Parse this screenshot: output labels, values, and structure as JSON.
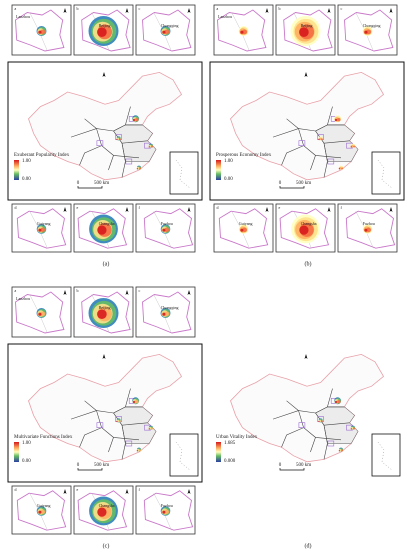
{
  "panels": [
    {
      "caption": "(a)",
      "legend": {
        "title": "Exuberant Popularity Index",
        "max": "1.00",
        "min": "0.00"
      },
      "scale": {
        "zero": "0",
        "distance": "500 km"
      },
      "insets": [
        {
          "letter": "a",
          "city": "Lanzhou"
        },
        {
          "letter": "b",
          "city": "Beijing"
        },
        {
          "letter": "c",
          "city": "Chongqing"
        },
        {
          "letter": "d",
          "city": "Guiyang"
        },
        {
          "letter": "e",
          "city": "Changsha"
        },
        {
          "letter": "f",
          "city": "Fuzhou"
        }
      ]
    },
    {
      "caption": "(b)",
      "legend": {
        "title": "Prosperous Economy Index",
        "max": "1.00",
        "min": "0.00"
      },
      "scale": {
        "zero": "0",
        "distance": "500 km"
      },
      "insets": [
        {
          "letter": "a",
          "city": "Lanzhou"
        },
        {
          "letter": "b",
          "city": "Beijing"
        },
        {
          "letter": "c",
          "city": "Chongqing"
        },
        {
          "letter": "d",
          "city": "Guiyang"
        },
        {
          "letter": "e",
          "city": "Changsha"
        },
        {
          "letter": "f",
          "city": "Fuzhou"
        }
      ]
    },
    {
      "caption": "(c)",
      "legend": {
        "title": "Multivariate Functions Index",
        "max": "1.00",
        "min": "0.00"
      },
      "scale": {
        "zero": "0",
        "distance": "500 km"
      },
      "insets": [
        {
          "letter": "a",
          "city": "Lanzhou"
        },
        {
          "letter": "b",
          "city": "Beijing"
        },
        {
          "letter": "c",
          "city": "Chongqing"
        },
        {
          "letter": "d",
          "city": "Guiyang"
        },
        {
          "letter": "e",
          "city": "Changsha"
        },
        {
          "letter": "f",
          "city": "Fuzhou"
        }
      ]
    },
    {
      "caption": "(d)",
      "legend": {
        "title": "Urban Vitality Index",
        "max": "1.685",
        "min": "0.000"
      },
      "scale": {
        "zero": "0",
        "distance": "500 km"
      }
    }
  ]
}
